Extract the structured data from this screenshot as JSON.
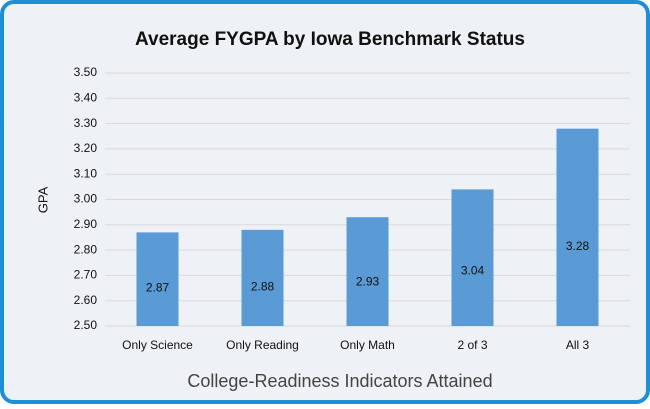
{
  "chart_data": {
    "type": "bar",
    "title": "Average FYGPA by Iowa Benchmark Status",
    "y_label": "GPA",
    "x_label": "College-Readiness Indicators Attained",
    "categories": [
      "Only Science",
      "Only Reading",
      "Only Math",
      "2 of 3",
      "All 3"
    ],
    "values": [
      2.87,
      2.88,
      2.93,
      3.04,
      3.28
    ],
    "color": "#5b9bd5",
    "ylim": [
      2.5,
      3.5
    ],
    "yticks": [
      {
        "value": 2.5,
        "label": "2.50"
      },
      {
        "value": 2.6,
        "label": "2.60"
      },
      {
        "value": 2.7,
        "label": "2.70"
      },
      {
        "value": 2.8,
        "label": "2.80"
      },
      {
        "value": 2.9,
        "label": "2.90"
      },
      {
        "value": 3.0,
        "label": "3.00"
      },
      {
        "value": 3.1,
        "label": "3.10"
      },
      {
        "value": 3.2,
        "label": "3.20"
      },
      {
        "value": 3.3,
        "label": "3.30"
      },
      {
        "value": 3.4,
        "label": "3.40"
      },
      {
        "value": 3.5,
        "label": "3.50"
      }
    ],
    "grid": true
  }
}
